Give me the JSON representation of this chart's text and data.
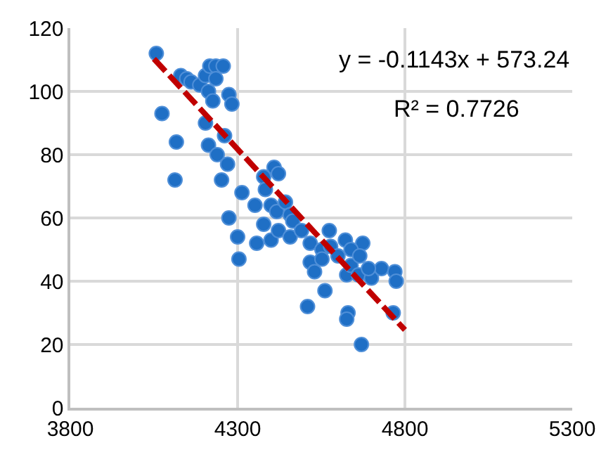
{
  "chart_data": {
    "type": "scatter",
    "xlim": [
      3800,
      5300
    ],
    "xticks": [
      3800,
      4300,
      4800,
      5300
    ],
    "ylim": [
      0,
      120
    ],
    "yticks": [
      0,
      20,
      40,
      60,
      80,
      100,
      120
    ],
    "grid": true,
    "marker": "circle",
    "annotations": [
      "y = -0.1143x + 573.24",
      "R² = 0.7726"
    ],
    "series": [
      {
        "color": "#1f6fc5",
        "x": [
          4057,
          4074,
          4117,
          4113,
          4130,
          4148,
          4161,
          4187,
          4204,
          4217,
          4235,
          4257,
          4235,
          4213,
          4226,
          4274,
          4283,
          4204,
          4261,
          4213,
          4239,
          4270,
          4252,
          4313,
          4274,
          4300,
          4304,
          4357,
          4352,
          4378,
          4409,
          4422,
          4383,
          4400,
          4417,
          4443,
          4457,
          4465,
          4378,
          4400,
          4422,
          4457,
          4491,
          4517,
          4552,
          4578,
          4517,
          4530,
          4509,
          4561,
          4626,
          4674,
          4639,
          4661,
          4700,
          4730,
          4691,
          4630,
          4626,
          4670,
          4770,
          4774,
          4765,
          4574,
          4552,
          4600,
          4622,
          4639,
          4665
        ],
        "values": [
          112,
          93,
          84,
          72,
          105,
          104,
          103,
          102,
          105,
          108,
          108,
          108,
          104,
          100,
          97,
          99,
          96,
          90,
          86,
          83,
          80,
          77,
          72,
          68,
          60,
          54,
          47,
          52,
          64,
          73,
          76,
          74,
          69,
          64,
          62,
          65,
          61,
          59,
          58,
          53,
          56,
          54,
          56,
          52,
          50,
          51,
          46,
          43,
          32,
          37,
          42,
          52,
          45,
          42,
          41,
          44,
          44,
          30,
          28,
          20,
          43,
          40,
          30,
          56,
          47,
          48,
          53,
          50,
          48
        ]
      },
      {
        "type": "line",
        "color": "#c00000",
        "line_style": "dashed",
        "marker": "none",
        "x": [
          4050,
          4800
        ],
        "values": [
          110.3,
          24.6
        ]
      }
    ]
  }
}
